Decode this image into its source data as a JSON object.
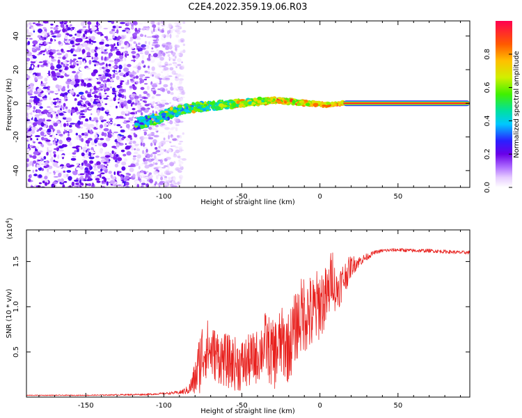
{
  "title": "C2E4.2022.359.19.06.R03",
  "colors": {
    "snr_line": "#e8211e",
    "axis": "#000000",
    "background": "#ffffff"
  },
  "colorbar": {
    "label": "Normalized spectral amplitude",
    "ticks": [
      "0.0",
      "0.2",
      "0.4",
      "0.6",
      "0.8"
    ],
    "tick_values": [
      0.0,
      0.2,
      0.4,
      0.6,
      0.8
    ],
    "range": [
      0,
      1
    ]
  },
  "chart_data": [
    {
      "type": "heatmap",
      "name": "spectrogram",
      "xlabel": "Height of straight line (km)",
      "ylabel": "Frequency (Hz)",
      "xlim": [
        -188,
        96
      ],
      "ylim": [
        -50,
        49
      ],
      "xticks": [
        "-150",
        "-100",
        "-50",
        "0",
        "50"
      ],
      "xtick_values": [
        -150,
        -100,
        -50,
        0,
        50
      ],
      "yticks": [
        "-40",
        "-20",
        "0",
        "20",
        "40"
      ],
      "ytick_values": [
        -40,
        -20,
        0,
        20,
        40
      ],
      "description_points": {
        "noise_region_x": [
          -188,
          -95
        ],
        "signal_trace_x": [
          -118,
          15
        ],
        "signal_trace_freq": [
          -12,
          -10,
          -6,
          -3,
          -2,
          -1,
          0,
          1,
          2,
          1,
          0,
          -1,
          0
        ],
        "carrier_line_x": [
          15,
          96
        ],
        "carrier_line_freq": 0,
        "carrier_amplitude": 0.95
      }
    },
    {
      "type": "line",
      "name": "snr",
      "xlabel": "Height of straight line (km)",
      "ylabel": "SNR (10 * v/v)",
      "yscale_label": "(x10",
      "yscale_exp": "4",
      "yscale_close": ")",
      "xlim": [
        -188,
        96
      ],
      "ylim": [
        0,
        1.85
      ],
      "xticks": [
        "-150",
        "-100",
        "-50",
        "0",
        "50"
      ],
      "xtick_values": [
        -150,
        -100,
        -50,
        0,
        50
      ],
      "yticks": [
        "0.5",
        "1.0",
        "1.5"
      ],
      "ytick_values": [
        0.5,
        1.0,
        1.5
      ],
      "series": [
        {
          "name": "SNR",
          "x": [
            -188,
            -150,
            -110,
            -100,
            -90,
            -84,
            -80,
            -76,
            -73,
            -70,
            -60,
            -50,
            -40,
            -35,
            -30,
            -25,
            -20,
            -15,
            -10,
            -5,
            0,
            5,
            8,
            10,
            15,
            20,
            25,
            30,
            35,
            40,
            50,
            60,
            70,
            80,
            90,
            96
          ],
          "y": [
            0.02,
            0.02,
            0.03,
            0.04,
            0.05,
            0.08,
            0.2,
            0.45,
            0.55,
            0.5,
            0.4,
            0.35,
            0.45,
            0.6,
            0.45,
            0.6,
            0.55,
            0.8,
            0.95,
            0.9,
            1.05,
            1.1,
            1.4,
            1.15,
            1.3,
            1.45,
            1.5,
            1.55,
            1.6,
            1.62,
            1.63,
            1.62,
            1.62,
            1.61,
            1.6,
            1.6
          ],
          "noise_amp": [
            0.005,
            0.005,
            0.01,
            0.01,
            0.02,
            0.05,
            0.2,
            0.4,
            0.35,
            0.3,
            0.3,
            0.3,
            0.3,
            0.35,
            0.4,
            0.4,
            0.4,
            0.4,
            0.45,
            0.45,
            0.4,
            0.35,
            0.3,
            0.25,
            0.2,
            0.12,
            0.06,
            0.04,
            0.02,
            0.02,
            0.02,
            0.02,
            0.02,
            0.02,
            0.02,
            0.02
          ]
        }
      ]
    }
  ]
}
